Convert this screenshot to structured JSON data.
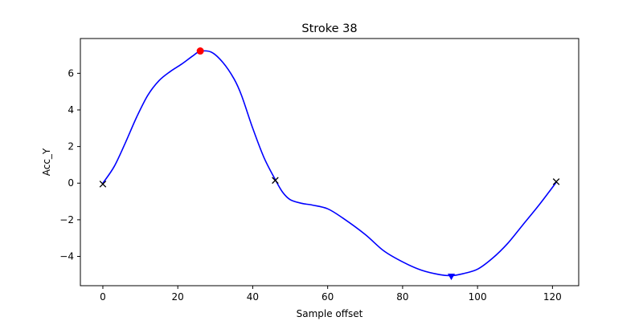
{
  "chart_data": {
    "type": "line",
    "title": "Stroke 38",
    "xlabel": "Sample offset",
    "ylabel": "Acc_Y",
    "xlim": [
      -6,
      127
    ],
    "ylim": [
      -5.6,
      7.9
    ],
    "x_ticks": [
      0,
      20,
      40,
      60,
      80,
      100,
      120
    ],
    "y_ticks": [
      -4,
      -2,
      0,
      2,
      4,
      6
    ],
    "grid": false,
    "series": [
      {
        "type": "line",
        "color": "#0000ff",
        "points": [
          [
            0,
            0.0
          ],
          [
            3,
            0.9
          ],
          [
            6,
            2.2
          ],
          [
            9,
            3.6
          ],
          [
            12,
            4.8
          ],
          [
            15,
            5.6
          ],
          [
            18,
            6.1
          ],
          [
            21,
            6.5
          ],
          [
            24,
            6.95
          ],
          [
            26,
            7.2
          ],
          [
            29,
            7.15
          ],
          [
            32,
            6.6
          ],
          [
            35,
            5.7
          ],
          [
            37,
            4.8
          ],
          [
            40,
            3.0
          ],
          [
            43,
            1.4
          ],
          [
            46,
            0.2
          ],
          [
            48,
            -0.5
          ],
          [
            50,
            -0.9
          ],
          [
            53,
            -1.1
          ],
          [
            56,
            -1.2
          ],
          [
            60,
            -1.4
          ],
          [
            64,
            -1.9
          ],
          [
            70,
            -2.8
          ],
          [
            75,
            -3.7
          ],
          [
            80,
            -4.3
          ],
          [
            85,
            -4.75
          ],
          [
            90,
            -5.0
          ],
          [
            93,
            -5.05
          ],
          [
            96,
            -4.95
          ],
          [
            100,
            -4.7
          ],
          [
            104,
            -4.1
          ],
          [
            108,
            -3.3
          ],
          [
            112,
            -2.3
          ],
          [
            116,
            -1.3
          ],
          [
            119,
            -0.5
          ],
          [
            121,
            0.05
          ]
        ]
      }
    ],
    "markers": [
      {
        "shape": "x",
        "color": "#000000",
        "x": 0,
        "y": -0.05
      },
      {
        "shape": "x",
        "color": "#000000",
        "x": 46,
        "y": 0.15
      },
      {
        "shape": "x",
        "color": "#000000",
        "x": 121,
        "y": 0.08
      },
      {
        "shape": "circle",
        "color": "#ff0000",
        "x": 26,
        "y": 7.22
      },
      {
        "shape": "triangle-down",
        "color": "#0000ff",
        "x": 93,
        "y": -5.1
      }
    ]
  }
}
